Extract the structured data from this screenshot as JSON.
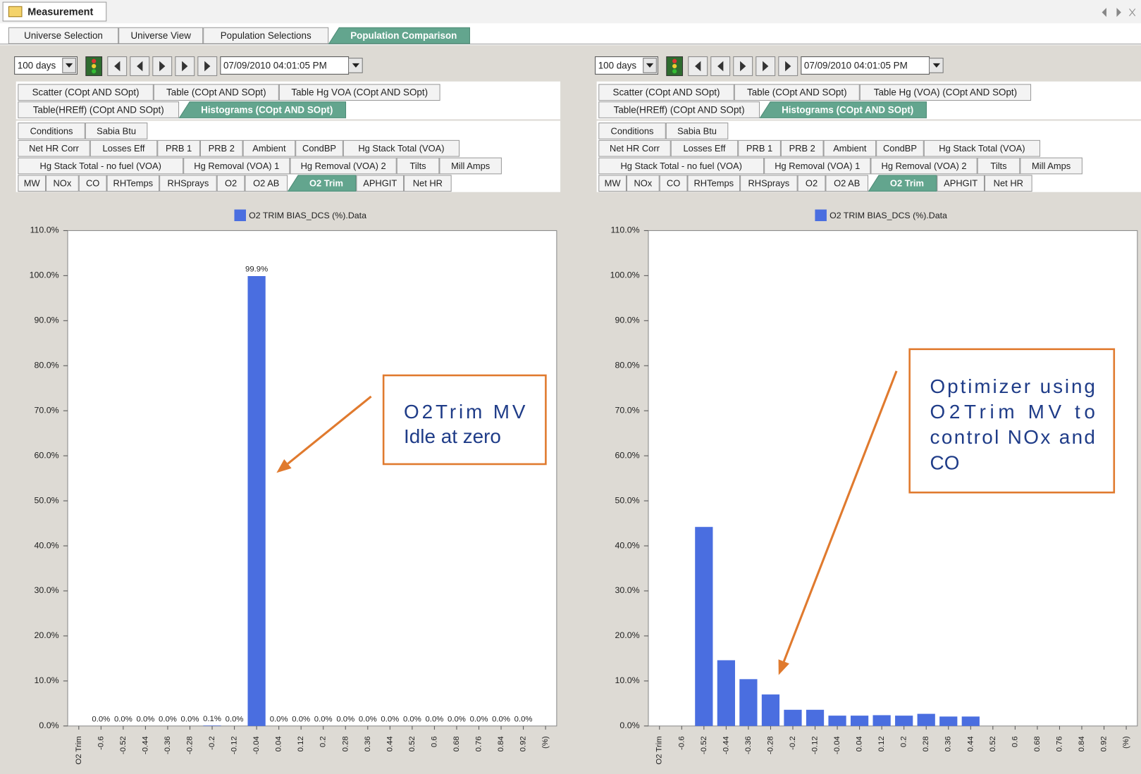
{
  "window": {
    "title": "Measurement"
  },
  "main_tabs": {
    "items": [
      "Universe Selection",
      "Universe View",
      "Population Selections",
      "Population Comparison"
    ],
    "active": 3
  },
  "panels": [
    {
      "range": "100 days",
      "datetime": "07/09/2010 04:01:05 PM",
      "view_tabs": {
        "rows": [
          [
            "Scatter (COpt AND SOpt)",
            "Table (COpt AND SOpt)",
            "Table Hg VOA (COpt AND SOpt)"
          ],
          [
            "Table(HREff) (COpt AND SOpt)",
            "Histograms (COpt AND SOpt)"
          ]
        ],
        "active": [
          1,
          1
        ]
      },
      "sub_tabs": {
        "rows": [
          [
            "Conditions",
            "Sabia Btu"
          ],
          [
            "Net HR Corr",
            "Losses Eff",
            "PRB 1",
            "PRB 2",
            "Ambient",
            "CondBP",
            "Hg Stack Total (VOA)"
          ],
          [
            "Hg Stack Total - no fuel (VOA)",
            "Hg Removal (VOA) 1",
            "Hg Removal (VOA) 2",
            "Tilts",
            "Mill Amps"
          ],
          [
            "MW",
            "NOx",
            "CO",
            "RHTemps",
            "RHSprays",
            "O2",
            "O2 AB",
            "O2 Trim",
            "APHGIT",
            "Net HR"
          ]
        ],
        "active": [
          3,
          7
        ]
      }
    },
    {
      "range": "100 days",
      "datetime": "07/09/2010 04:01:05 PM",
      "view_tabs": {
        "rows": [
          [
            "Scatter (COpt AND SOpt)",
            "Table (COpt AND SOpt)",
            "Table Hg (VOA) (COpt AND SOpt)"
          ],
          [
            "Table(HREff) (COpt AND SOpt)",
            "Histograms (COpt AND SOpt)"
          ]
        ],
        "active": [
          1,
          1
        ]
      },
      "sub_tabs": {
        "rows": [
          [
            "Conditions",
            "Sabia Btu"
          ],
          [
            "Net HR Corr",
            "Losses Eff",
            "PRB 1",
            "PRB 2",
            "Ambient",
            "CondBP",
            "Hg Stack Total (VOA)"
          ],
          [
            "Hg Stack Total - no fuel (VOA)",
            "Hg Removal (VOA) 1",
            "Hg Removal (VOA) 2",
            "Tilts",
            "Mill Amps"
          ],
          [
            "MW",
            "NOx",
            "CO",
            "RHTemps",
            "RHSprays",
            "O2",
            "O2 AB",
            "O2 Trim",
            "APHGIT",
            "Net HR"
          ]
        ],
        "active": [
          3,
          7
        ]
      }
    }
  ],
  "chart_data": [
    {
      "type": "bar",
      "x_label": "O2 Trim",
      "x_unit": "(%)",
      "categories": [
        "-0.6",
        "-0.52",
        "-0.44",
        "-0.36",
        "-0.28",
        "-0.2",
        "-0.12",
        "-0.04",
        "0.04",
        "0.12",
        "0.2",
        "0.28",
        "0.36",
        "0.44",
        "0.52",
        "0.6",
        "0.68",
        "0.76",
        "0.84",
        "0.92"
      ],
      "series": [
        {
          "name": "O2 TRIM BIAS_DCS (%).Data",
          "color": "#4a6ee0",
          "values": [
            0,
            0,
            0,
            0,
            0,
            0.1,
            0,
            99.9,
            0,
            0,
            0,
            0,
            0,
            0,
            0,
            0,
            0,
            0,
            0,
            0
          ],
          "value_labels": [
            "0.0%",
            "0.0%",
            "0.0%",
            "0.0%",
            "0.0%",
            "0.1%",
            "0.0%",
            "99.9%",
            "0.0%",
            "0.0%",
            "0.0%",
            "0.0%",
            "0.0%",
            "0.0%",
            "0.0%",
            "0.0%",
            "0.0%",
            "0.0%",
            "0.0%",
            "0.0%"
          ]
        }
      ],
      "ylim": [
        0,
        110
      ],
      "yticks": [
        {
          "value": 0,
          "label": "0.0%"
        },
        {
          "value": 10,
          "label": "10.0%"
        },
        {
          "value": 20,
          "label": "20.0%"
        },
        {
          "value": 30,
          "label": "30.0%"
        },
        {
          "value": 40,
          "label": "40.0%"
        },
        {
          "value": 50,
          "label": "50.0%"
        },
        {
          "value": 60,
          "label": "60.0%"
        },
        {
          "value": 70,
          "label": "70.0%"
        },
        {
          "value": 80,
          "label": "80.0%"
        },
        {
          "value": 90,
          "label": "90.0%"
        },
        {
          "value": 100,
          "label": "100.0%"
        },
        {
          "value": 110,
          "label": "110.0%"
        }
      ],
      "legend": "top",
      "annotation": {
        "lines": [
          "O2Trim MV",
          "Idle at zero"
        ],
        "color": "#e07a2e",
        "text_color": "#1f3c88"
      }
    },
    {
      "type": "bar",
      "x_label": "O2 Trim",
      "x_unit": "(%)",
      "categories": [
        "-0.6",
        "-0.52",
        "-0.44",
        "-0.36",
        "-0.28",
        "-0.2",
        "-0.12",
        "-0.04",
        "0.04",
        "0.12",
        "0.2",
        "0.28",
        "0.36",
        "0.44",
        "0.52",
        "0.6",
        "0.68",
        "0.76",
        "0.84",
        "0.92"
      ],
      "series": [
        {
          "name": "O2 TRIM BIAS_DCS (%).Data",
          "color": "#4a6ee0",
          "values": [
            0,
            44.2,
            14.6,
            10.4,
            7.0,
            3.6,
            3.6,
            2.3,
            2.3,
            2.4,
            2.3,
            2.7,
            2.1,
            2.1,
            0,
            0,
            0,
            0,
            0,
            0
          ]
        }
      ],
      "ylim": [
        0,
        110
      ],
      "yticks": [
        {
          "value": 0,
          "label": "0.0%"
        },
        {
          "value": 10,
          "label": "10.0%"
        },
        {
          "value": 20,
          "label": "20.0%"
        },
        {
          "value": 30,
          "label": "30.0%"
        },
        {
          "value": 40,
          "label": "40.0%"
        },
        {
          "value": 50,
          "label": "50.0%"
        },
        {
          "value": 60,
          "label": "60.0%"
        },
        {
          "value": 70,
          "label": "70.0%"
        },
        {
          "value": 80,
          "label": "80.0%"
        },
        {
          "value": 90,
          "label": "90.0%"
        },
        {
          "value": 100,
          "label": "100.0%"
        },
        {
          "value": 110,
          "label": "110.0%"
        }
      ],
      "legend": "top",
      "annotation": {
        "lines": [
          "Optimizer using",
          "O2Trim MV to",
          "control NOx and",
          "CO"
        ],
        "color": "#e07a2e",
        "text_color": "#1f3c88"
      }
    }
  ]
}
